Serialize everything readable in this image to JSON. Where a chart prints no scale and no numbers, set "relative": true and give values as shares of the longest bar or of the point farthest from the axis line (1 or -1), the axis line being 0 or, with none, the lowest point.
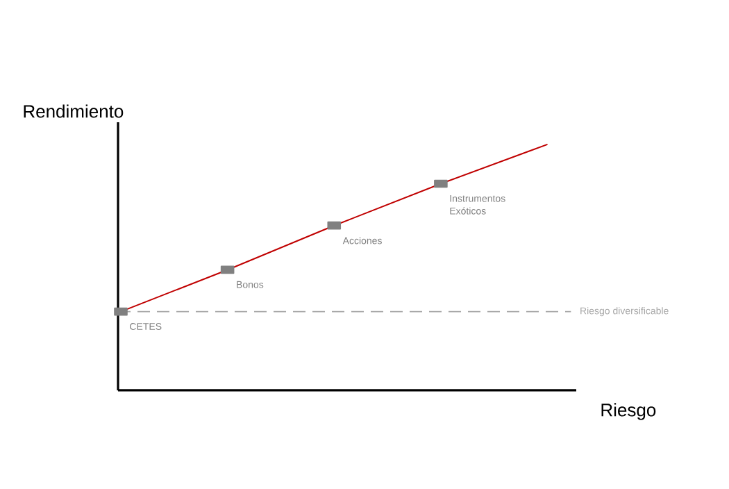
{
  "chart_data": {
    "type": "line",
    "xlabel": "Riesgo",
    "ylabel": "Rendimiento",
    "relative": true,
    "categories": [
      null,
      null,
      null,
      null,
      null
    ],
    "series": [
      {
        "color": "#c00000",
        "marker": "square",
        "values": [
          0.32,
          0.49,
          0.67,
          0.84,
          1
        ]
      }
    ],
    "annotations": [
      "CETES",
      "Bonos",
      "Acciones",
      "Instrumentos Exóticos"
    ],
    "ref_lines": [
      {
        "axis": "y",
        "value": 0.32,
        "label": "Riesgo diversificable",
        "color": "#a6a6a6",
        "line_style": "dashed"
      }
    ]
  }
}
